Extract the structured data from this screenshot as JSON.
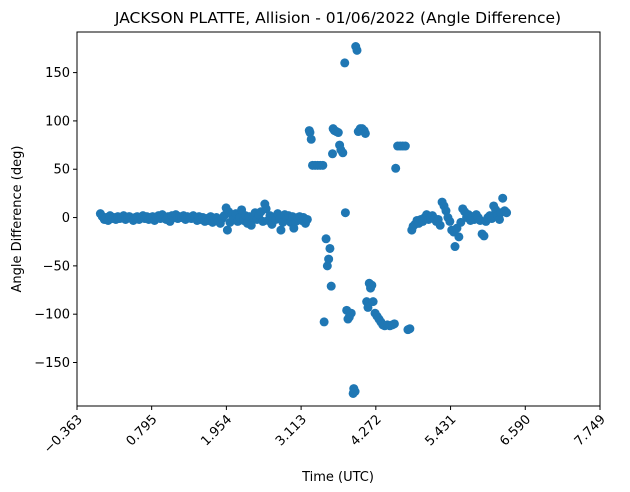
{
  "chart_data": {
    "type": "scatter",
    "title": "JACKSON PLATTE, Allision - 01/06/2022 (Angle Difference)",
    "xlabel": "Time (UTC)",
    "ylabel": "Angle Difference (deg)",
    "xlim": [
      -0.363,
      7.749
    ],
    "ylim": [
      -195,
      192
    ],
    "x_ticks": [
      -0.363,
      0.795,
      1.954,
      3.113,
      4.272,
      5.431,
      6.59,
      7.749
    ],
    "x_tick_labels": [
      "−0.363",
      "0.795",
      "1.954",
      "3.113",
      "4.272",
      "5.431",
      "6.590",
      "7.749"
    ],
    "y_ticks": [
      -150,
      -100,
      -50,
      0,
      50,
      100,
      150
    ],
    "y_tick_labels": [
      "−150",
      "−100",
      "−50",
      "0",
      "50",
      "100",
      "150"
    ],
    "grid": false,
    "marker_color": "#1f77b4",
    "series": [
      {
        "points": [
          [
            0.0,
            4
          ],
          [
            0.03,
            1
          ],
          [
            0.06,
            -2
          ],
          [
            0.09,
            0
          ],
          [
            0.12,
            -3
          ],
          [
            0.15,
            2
          ],
          [
            0.18,
            -1
          ],
          [
            0.21,
            0
          ],
          [
            0.24,
            -2
          ],
          [
            0.27,
            1
          ],
          [
            0.3,
            -1
          ],
          [
            0.33,
            0
          ],
          [
            0.36,
            2
          ],
          [
            0.39,
            -2
          ],
          [
            0.42,
            0
          ],
          [
            0.45,
            1
          ],
          [
            0.48,
            -1
          ],
          [
            0.51,
            -3
          ],
          [
            0.54,
            0
          ],
          [
            0.57,
            1
          ],
          [
            0.6,
            -2
          ],
          [
            0.63,
            0
          ],
          [
            0.66,
            2
          ],
          [
            0.69,
            -1
          ],
          [
            0.72,
            1
          ],
          [
            0.75,
            -2
          ],
          [
            0.78,
            0
          ],
          [
            0.81,
            1
          ],
          [
            0.84,
            -3
          ],
          [
            0.87,
            0
          ],
          [
            0.9,
            2
          ],
          [
            0.93,
            -1
          ],
          [
            0.96,
            3
          ],
          [
            0.99,
            0
          ],
          [
            1.02,
            -2
          ],
          [
            1.05,
            1
          ],
          [
            1.08,
            -4
          ],
          [
            1.11,
            2
          ],
          [
            1.14,
            0
          ],
          [
            1.17,
            3
          ],
          [
            1.2,
            -1
          ],
          [
            1.23,
            1
          ],
          [
            1.26,
            0
          ],
          [
            1.29,
            2
          ],
          [
            1.32,
            -2
          ],
          [
            1.35,
            1
          ],
          [
            1.38,
            0
          ],
          [
            1.41,
            -1
          ],
          [
            1.44,
            2
          ],
          [
            1.47,
            0
          ],
          [
            1.5,
            -3
          ],
          [
            1.53,
            1
          ],
          [
            1.56,
            -2
          ],
          [
            1.59,
            0
          ],
          [
            1.62,
            -4
          ],
          [
            1.65,
            -1
          ],
          [
            1.68,
            -3
          ],
          [
            1.71,
            1
          ],
          [
            1.74,
            -5
          ],
          [
            1.77,
            -2
          ],
          [
            1.8,
            0
          ],
          [
            1.83,
            -4
          ],
          [
            1.86,
            -6
          ],
          [
            1.89,
            -1
          ],
          [
            1.92,
            2
          ],
          [
            1.95,
            10
          ],
          [
            1.97,
            -13
          ],
          [
            1.99,
            6
          ],
          [
            2.01,
            -5
          ],
          [
            2.04,
            3
          ],
          [
            2.07,
            -2
          ],
          [
            2.1,
            4
          ],
          [
            2.13,
            -4
          ],
          [
            2.16,
            0
          ],
          [
            2.19,
            8
          ],
          [
            2.22,
            -3
          ],
          [
            2.25,
            2
          ],
          [
            2.28,
            -6
          ],
          [
            2.31,
            1
          ],
          [
            2.34,
            -8
          ],
          [
            2.37,
            0
          ],
          [
            2.4,
            5
          ],
          [
            2.43,
            -2
          ],
          [
            2.46,
            3
          ],
          [
            2.49,
            6
          ],
          [
            2.52,
            -4
          ],
          [
            2.55,
            14
          ],
          [
            2.57,
            9
          ],
          [
            2.6,
            -3
          ],
          [
            2.63,
            2
          ],
          [
            2.66,
            -7
          ],
          [
            2.69,
            0
          ],
          [
            2.72,
            -2
          ],
          [
            2.75,
            4
          ],
          [
            2.78,
            -1
          ],
          [
            2.8,
            -13
          ],
          [
            2.83,
            -5
          ],
          [
            2.86,
            3
          ],
          [
            2.89,
            0
          ],
          [
            2.92,
            2
          ],
          [
            2.95,
            -5
          ],
          [
            2.98,
            1
          ],
          [
            3.0,
            -11
          ],
          [
            3.03,
            -4
          ],
          [
            3.06,
            0
          ],
          [
            3.09,
            1
          ],
          [
            3.12,
            -3
          ],
          [
            3.15,
            0
          ],
          [
            3.18,
            -6
          ],
          [
            3.21,
            -2
          ],
          [
            3.24,
            90
          ],
          [
            3.25,
            88
          ],
          [
            3.27,
            81
          ],
          [
            3.29,
            54
          ],
          [
            3.33,
            54
          ],
          [
            3.37,
            54
          ],
          [
            3.41,
            54
          ],
          [
            3.45,
            54
          ],
          [
            3.47,
            -108
          ],
          [
            3.5,
            -22
          ],
          [
            3.52,
            -50
          ],
          [
            3.54,
            -43
          ],
          [
            3.56,
            -32
          ],
          [
            3.58,
            -71
          ],
          [
            3.6,
            66
          ],
          [
            3.61,
            92
          ],
          [
            3.63,
            90
          ],
          [
            3.66,
            89
          ],
          [
            3.69,
            88
          ],
          [
            3.71,
            75
          ],
          [
            3.73,
            70
          ],
          [
            3.76,
            67
          ],
          [
            3.79,
            160
          ],
          [
            3.8,
            5
          ],
          [
            3.82,
            -96
          ],
          [
            3.84,
            -105
          ],
          [
            3.86,
            -103
          ],
          [
            3.89,
            -99
          ],
          [
            3.92,
            -182
          ],
          [
            3.93,
            -177
          ],
          [
            3.95,
            -180
          ],
          [
            3.96,
            177
          ],
          [
            3.98,
            173
          ],
          [
            4.0,
            89
          ],
          [
            4.03,
            92
          ],
          [
            4.06,
            92
          ],
          [
            4.09,
            90
          ],
          [
            4.11,
            87
          ],
          [
            4.13,
            -87
          ],
          [
            4.15,
            -93
          ],
          [
            4.17,
            -68
          ],
          [
            4.19,
            -73
          ],
          [
            4.21,
            -70
          ],
          [
            4.23,
            -87
          ],
          [
            4.26,
            -99
          ],
          [
            4.29,
            -102
          ],
          [
            4.32,
            -105
          ],
          [
            4.35,
            -108
          ],
          [
            4.38,
            -111
          ],
          [
            4.41,
            -112
          ],
          [
            4.45,
            -111
          ],
          [
            4.49,
            -112
          ],
          [
            4.53,
            -111
          ],
          [
            4.56,
            -110
          ],
          [
            4.58,
            51
          ],
          [
            4.61,
            74
          ],
          [
            4.65,
            74
          ],
          [
            4.69,
            74
          ],
          [
            4.73,
            74
          ],
          [
            4.77,
            -116
          ],
          [
            4.8,
            -115
          ],
          [
            4.83,
            -13
          ],
          [
            4.85,
            -9
          ],
          [
            4.88,
            -7
          ],
          [
            4.91,
            -3
          ],
          [
            4.94,
            -6
          ],
          [
            4.97,
            -2
          ],
          [
            5.0,
            -4
          ],
          [
            5.03,
            0
          ],
          [
            5.06,
            3
          ],
          [
            5.09,
            -2
          ],
          [
            5.12,
            0
          ],
          [
            5.15,
            2
          ],
          [
            5.18,
            -1
          ],
          [
            5.21,
            -4
          ],
          [
            5.24,
            -2
          ],
          [
            5.27,
            -8
          ],
          [
            5.3,
            16
          ],
          [
            5.33,
            12
          ],
          [
            5.36,
            7
          ],
          [
            5.39,
            0
          ],
          [
            5.42,
            -4
          ],
          [
            5.45,
            -13
          ],
          [
            5.48,
            -15
          ],
          [
            5.5,
            -30
          ],
          [
            5.53,
            -11
          ],
          [
            5.56,
            -20
          ],
          [
            5.59,
            -5
          ],
          [
            5.62,
            9
          ],
          [
            5.65,
            6
          ],
          [
            5.68,
            0
          ],
          [
            5.71,
            3
          ],
          [
            5.74,
            -3
          ],
          [
            5.77,
            1
          ],
          [
            5.8,
            -2
          ],
          [
            5.83,
            3
          ],
          [
            5.86,
            0
          ],
          [
            5.89,
            -3
          ],
          [
            5.92,
            -17
          ],
          [
            5.95,
            -19
          ],
          [
            5.98,
            -4
          ],
          [
            6.01,
            0
          ],
          [
            6.04,
            2
          ],
          [
            6.07,
            -1
          ],
          [
            6.1,
            12
          ],
          [
            6.13,
            8
          ],
          [
            6.16,
            2
          ],
          [
            6.19,
            -2
          ],
          [
            6.21,
            5
          ],
          [
            6.24,
            20
          ],
          [
            6.27,
            7
          ],
          [
            6.3,
            5
          ]
        ]
      }
    ]
  }
}
